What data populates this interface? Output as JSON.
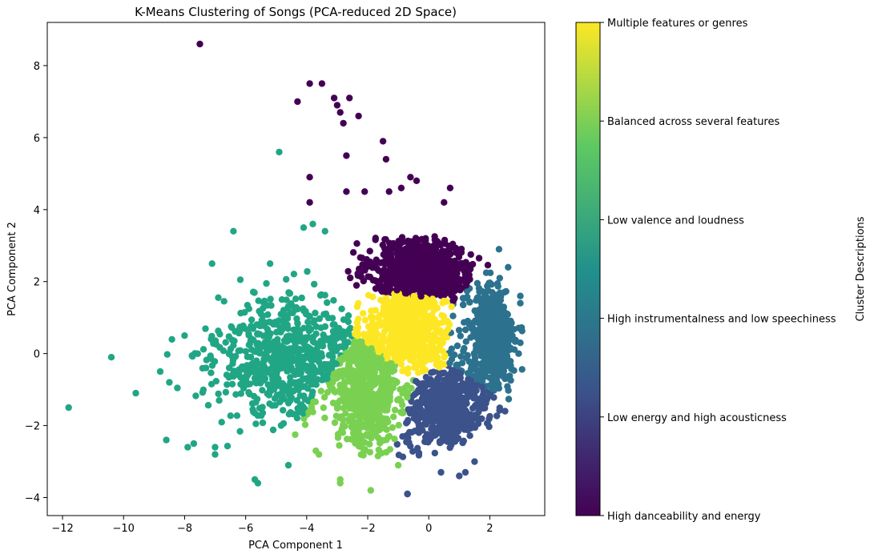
{
  "chart_data": {
    "type": "scatter",
    "title": "K-Means Clustering of Songs (PCA-reduced 2D Space)",
    "xlabel": "PCA Component 1",
    "ylabel": "PCA Component 2",
    "xlim": [
      -12.5,
      3.8
    ],
    "ylim": [
      -4.5,
      9.2
    ],
    "xticks": [
      -12,
      -10,
      -8,
      -6,
      -4,
      -2,
      0,
      2
    ],
    "xtick_labels": [
      "−12",
      "−10",
      "−8",
      "−6",
      "−4",
      "−2",
      "0",
      "2"
    ],
    "yticks": [
      -4,
      -2,
      0,
      2,
      4,
      6,
      8
    ],
    "ytick_labels": [
      "−4",
      "−2",
      "0",
      "2",
      "4",
      "6",
      "8"
    ],
    "grid": false,
    "colorbar": {
      "label": "Cluster Descriptions",
      "colormap": "viridis",
      "colormap_stops": [
        "#440154",
        "#3b528b",
        "#21918c",
        "#5ec962",
        "#fde725"
      ],
      "range": [
        0,
        5
      ],
      "ticks": [
        0,
        1,
        2,
        3,
        4,
        5
      ],
      "tick_labels": [
        "High danceability and energy",
        "Low energy and high acousticness",
        "High instrumentalness and low speechiness",
        "Low valence and loudness",
        "Balanced across several features",
        "Multiple features or genres"
      ]
    },
    "clusters": [
      {
        "cluster": 0,
        "color": "#440154",
        "region": {
          "center": [
            -0.2,
            2.3
          ],
          "spread": [
            1.4,
            0.8
          ],
          "count": 900
        },
        "outliers": [
          [
            -7.5,
            8.6
          ],
          [
            -3.9,
            7.5
          ],
          [
            -3.5,
            7.5
          ],
          [
            -4.3,
            7.0
          ],
          [
            -3.1,
            7.1
          ],
          [
            -2.6,
            7.1
          ],
          [
            -3.0,
            6.9
          ],
          [
            -2.9,
            6.7
          ],
          [
            -2.8,
            6.4
          ],
          [
            -2.3,
            6.6
          ],
          [
            -1.5,
            5.9
          ],
          [
            -2.7,
            5.5
          ],
          [
            -1.4,
            5.4
          ],
          [
            -3.9,
            4.9
          ],
          [
            -2.7,
            4.5
          ],
          [
            -2.1,
            4.5
          ],
          [
            -1.3,
            4.5
          ],
          [
            -0.9,
            4.6
          ],
          [
            -0.6,
            4.9
          ],
          [
            -0.4,
            4.8
          ],
          [
            0.7,
            4.6
          ],
          [
            0.5,
            4.2
          ],
          [
            -3.9,
            4.2
          ],
          [
            -0.7,
            -3.9
          ]
        ]
      },
      {
        "cluster": 1,
        "color": "#3b528b",
        "region": {
          "center": [
            0.6,
            -1.5
          ],
          "spread": [
            1.1,
            1.0
          ],
          "count": 650
        },
        "outliers": [
          [
            -0.7,
            -3.9
          ],
          [
            1.0,
            -3.4
          ],
          [
            0.4,
            -3.3
          ],
          [
            1.2,
            -3.3
          ],
          [
            1.5,
            -3.0
          ],
          [
            2.5,
            -1.6
          ]
        ]
      },
      {
        "cluster": 2,
        "color": "#2c728e",
        "region": {
          "center": [
            2.1,
            0.4
          ],
          "spread": [
            0.6,
            1.2
          ],
          "count": 550
        },
        "outliers": [
          [
            2.3,
            2.9
          ],
          [
            2.6,
            2.4
          ],
          [
            3.0,
            1.6
          ],
          [
            3.0,
            1.4
          ],
          [
            3.0,
            0.3
          ],
          [
            2.5,
            -0.7
          ]
        ]
      },
      {
        "cluster": 3,
        "color": "#21a685",
        "region": {
          "center": [
            -4.6,
            -0.1
          ],
          "spread": [
            2.0,
            1.4
          ],
          "count": 750
        },
        "outliers": [
          [
            -11.8,
            -1.5
          ],
          [
            -10.4,
            -0.1
          ],
          [
            -9.6,
            -1.1
          ],
          [
            -8.8,
            -0.5
          ],
          [
            -8.6,
            -2.4
          ],
          [
            -8.0,
            0.5
          ],
          [
            -7.9,
            -2.6
          ],
          [
            -7.7,
            -2.5
          ],
          [
            -7.0,
            -2.6
          ],
          [
            -7.0,
            -2.8
          ],
          [
            -4.9,
            5.6
          ],
          [
            -6.4,
            3.4
          ],
          [
            -7.1,
            2.5
          ],
          [
            -5.7,
            -3.5
          ],
          [
            -5.6,
            -3.6
          ],
          [
            -4.6,
            -3.1
          ],
          [
            -3.8,
            3.6
          ],
          [
            -3.4,
            3.4
          ],
          [
            -4.1,
            3.5
          ],
          [
            -5.2,
            2.5
          ],
          [
            -8.5,
            -0.8
          ],
          [
            -7.3,
            -0.4
          ]
        ]
      },
      {
        "cluster": 4,
        "color": "#7ad151",
        "region": {
          "center": [
            -2.0,
            -1.0
          ],
          "spread": [
            0.8,
            1.4
          ],
          "count": 700
        },
        "outliers": [
          [
            -2.9,
            -3.5
          ],
          [
            -2.9,
            -3.6
          ],
          [
            -1.9,
            -3.8
          ],
          [
            -1.0,
            -3.1
          ],
          [
            -3.7,
            -2.7
          ],
          [
            -3.6,
            -2.8
          ]
        ]
      },
      {
        "cluster": 5,
        "color": "#fde725",
        "region": {
          "center": [
            -0.6,
            0.6
          ],
          "spread": [
            1.0,
            0.7
          ],
          "count": 450
        },
        "outliers": []
      }
    ]
  }
}
